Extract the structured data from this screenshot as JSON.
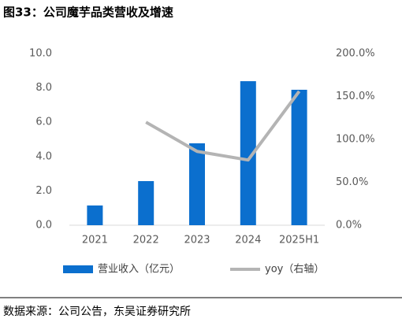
{
  "chart_data": {
    "type": "bar",
    "title": "图33：公司魔芋品类营收及增速",
    "source": "数据来源：公司公告，东吴证券研究所",
    "categories": [
      "2021",
      "2022",
      "2023",
      "2024",
      "2025H1"
    ],
    "series": [
      {
        "name": "营业收入（亿元）",
        "type": "bar",
        "color": "#0b6fce",
        "values": [
          1.15,
          2.57,
          4.77,
          8.39,
          7.89
        ]
      },
      {
        "name": "yoy（右轴）",
        "type": "line",
        "axis": "y2",
        "color": "#b4b4b4",
        "values": [
          null,
          120,
          86,
          76,
          156
        ]
      }
    ],
    "ylim": [
      0,
      10
    ],
    "yticks": [
      {
        "value": 0,
        "label": "0.0"
      },
      {
        "value": 2,
        "label": "2.0"
      },
      {
        "value": 4,
        "label": "4.0"
      },
      {
        "value": 6,
        "label": "6.0"
      },
      {
        "value": 8,
        "label": "8.0"
      },
      {
        "value": 10,
        "label": "10.0"
      }
    ],
    "y2lim": [
      0,
      200
    ],
    "y2ticks": [
      {
        "value": 0,
        "label": "0.0%"
      },
      {
        "value": 50,
        "label": "50.0%"
      },
      {
        "value": 100,
        "label": "100.0%"
      },
      {
        "value": 150,
        "label": "150.0%"
      },
      {
        "value": 200,
        "label": "200.0%"
      }
    ],
    "grid": false,
    "legend": "bottom"
  }
}
